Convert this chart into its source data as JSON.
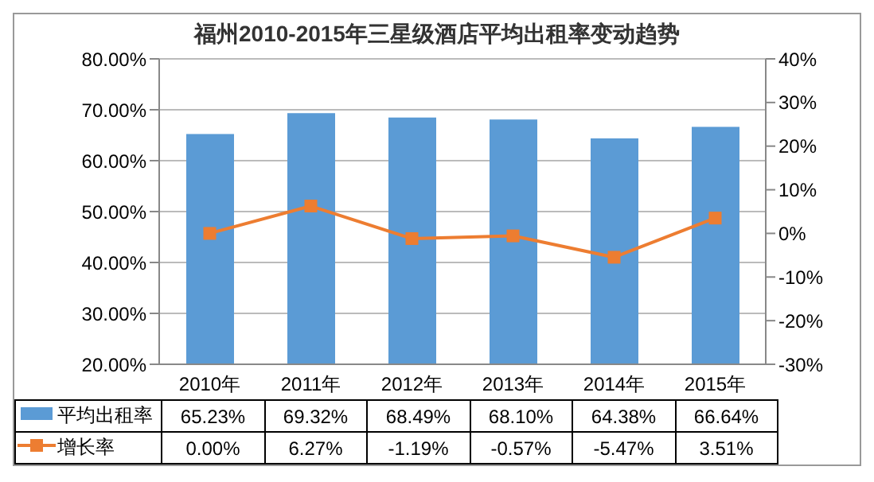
{
  "chart_data": {
    "type": "bar",
    "title": "福州2010-2015年三星级酒店平均出租率变动趋势",
    "categories": [
      "2010年",
      "2011年",
      "2012年",
      "2013年",
      "2014年",
      "2015年"
    ],
    "series": [
      {
        "name": "平均出租率",
        "color": "#5b9bd5",
        "values": [
          65.23,
          69.32,
          68.49,
          68.1,
          64.38,
          66.64
        ],
        "value_labels": [
          "65.23%",
          "69.32%",
          "68.49%",
          "68.10%",
          "64.38%",
          "66.64%"
        ]
      },
      {
        "name": "增长率",
        "type": "line",
        "axis": "y2",
        "color": "#ed7d31",
        "marker": "square",
        "values": [
          0.0,
          6.27,
          -1.19,
          -0.57,
          -5.47,
          3.51
        ],
        "value_labels": [
          "0.00%",
          "6.27%",
          "-1.19%",
          "-0.57%",
          "-5.47%",
          "3.51%"
        ]
      }
    ],
    "ylim": [
      20,
      80
    ],
    "yticks": [
      {
        "value": 20,
        "label": "20.00%"
      },
      {
        "value": 30,
        "label": "30.00%"
      },
      {
        "value": 40,
        "label": "40.00%"
      },
      {
        "value": 50,
        "label": "50.00%"
      },
      {
        "value": 60,
        "label": "60.00%"
      },
      {
        "value": 70,
        "label": "70.00%"
      },
      {
        "value": 80,
        "label": "80.00%"
      }
    ],
    "y2lim": [
      -30,
      40
    ],
    "y2ticks": [
      {
        "value": -30,
        "label": "-30%"
      },
      {
        "value": -20,
        "label": "-20%"
      },
      {
        "value": -10,
        "label": "-10%"
      },
      {
        "value": 0,
        "label": "0%"
      },
      {
        "value": 10,
        "label": "10%"
      },
      {
        "value": 20,
        "label": "20%"
      },
      {
        "value": 30,
        "label": "30%"
      },
      {
        "value": 40,
        "label": "40%"
      }
    ],
    "grid": "y",
    "legend": "bottom"
  }
}
